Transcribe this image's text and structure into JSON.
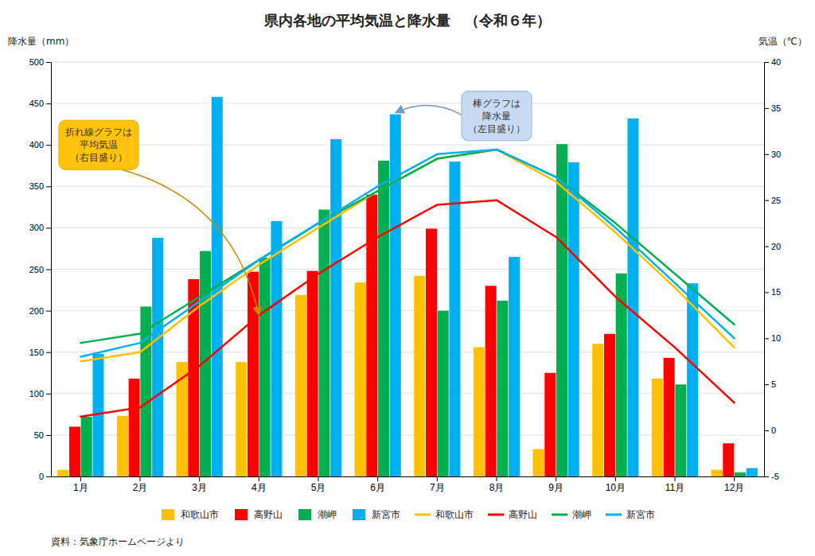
{
  "chart_data": {
    "type": "bar",
    "title": "県内各地の平均気温と降水量　（令和６年）",
    "categories": [
      "1月",
      "2月",
      "3月",
      "4月",
      "5月",
      "6月",
      "7月",
      "8月",
      "9月",
      "10月",
      "11月",
      "12月"
    ],
    "ylabel": "降水量（mm）",
    "y2label": "気温（℃）",
    "ylim": [
      0,
      500
    ],
    "yticks": [
      0,
      50,
      100,
      150,
      200,
      250,
      300,
      350,
      400,
      450,
      500
    ],
    "y2lim": [
      -5,
      40
    ],
    "y2ticks": [
      -5,
      0,
      5,
      10,
      15,
      20,
      25,
      30,
      35,
      40
    ],
    "grid": true,
    "legend": "bottom",
    "series": [
      {
        "name": "和歌山市",
        "type": "bar",
        "color": "#FFC000",
        "values": [
          8,
          73,
          138,
          138,
          219,
          234,
          242,
          156,
          33,
          160,
          118,
          8
        ]
      },
      {
        "name": "高野山",
        "type": "bar",
        "color": "#FF0000",
        "values": [
          60,
          118,
          238,
          247,
          248,
          340,
          299,
          230,
          125,
          172,
          143,
          40
        ]
      },
      {
        "name": "潮岬",
        "type": "bar",
        "color": "#00B050",
        "values": [
          72,
          205,
          272,
          264,
          322,
          381,
          200,
          212,
          401,
          245,
          111,
          5
        ]
      },
      {
        "name": "新宮市",
        "type": "bar",
        "color": "#00B0F0",
        "values": [
          148,
          288,
          458,
          308,
          407,
          437,
          380,
          265,
          379,
          432,
          233,
          10
        ]
      },
      {
        "name": "和歌山市",
        "type": "line",
        "axis": "y2",
        "color": "#FFC000",
        "values": [
          7.5,
          8.5,
          13.5,
          18.0,
          22.0,
          26.0,
          29.5,
          30.5,
          27.0,
          21.5,
          15.5,
          9.0
        ]
      },
      {
        "name": "高野山",
        "type": "line",
        "axis": "y2",
        "color": "#FF0000",
        "values": [
          1.5,
          2.5,
          7.0,
          12.5,
          17.0,
          21.0,
          24.5,
          25.0,
          21.0,
          14.5,
          9.0,
          3.0
        ]
      },
      {
        "name": "潮岬",
        "type": "line",
        "axis": "y2",
        "color": "#00B050",
        "values": [
          9.5,
          10.5,
          14.5,
          18.5,
          22.5,
          26.0,
          29.5,
          30.5,
          27.5,
          22.5,
          17.0,
          11.5
        ]
      },
      {
        "name": "新宮市",
        "type": "line",
        "axis": "y2",
        "color": "#00B0F0",
        "values": [
          8.0,
          9.5,
          14.0,
          18.5,
          22.5,
          26.5,
          30.0,
          30.5,
          27.5,
          22.0,
          16.0,
          10.0
        ]
      }
    ],
    "annotations": [
      "棒グラフは\n降水量\n（左目盛り）",
      "折れ線グラフは\n平均気温\n（右目盛り）"
    ],
    "source": "資料：気象庁ホームページより"
  }
}
